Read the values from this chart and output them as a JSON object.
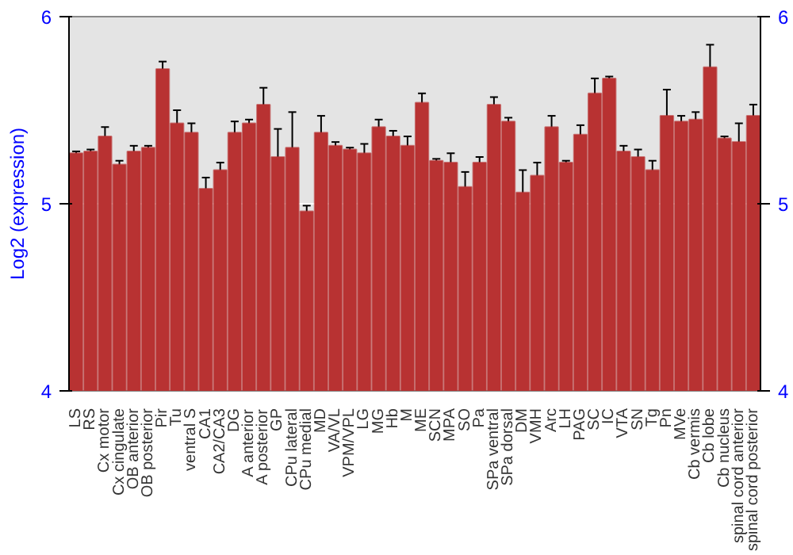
{
  "chart_data": {
    "type": "bar",
    "ylabel": "Log2 (expression)",
    "categories": [
      "LS",
      "RS",
      "Cx motor",
      "Cx cingulate",
      "OB anterior",
      "OB posterior",
      "Pir",
      "Tu",
      "ventral S",
      "CA1",
      "CA2/CA3",
      "DG",
      "A anterior",
      "A posterior",
      "GP",
      "CPu lateral",
      "CPu medial",
      "MD",
      "VA/VL",
      "VPM/VPL",
      "LG",
      "MG",
      "Hb",
      "M",
      "ME",
      "SCN",
      "MPA",
      "SO",
      "Pa",
      "SPa ventral",
      "SPa dorsal",
      "DM",
      "VMH",
      "Arc",
      "LH",
      "PAG",
      "SC",
      "IC",
      "VTA",
      "SN",
      "Tg",
      "Pn",
      "MVe",
      "Cb vermis",
      "Cb lobe",
      "Cb nucleus",
      "spinal cord anterior",
      "spinal cord posterior"
    ],
    "values": [
      5.27,
      5.28,
      5.36,
      5.21,
      5.28,
      5.3,
      5.72,
      5.43,
      5.38,
      5.08,
      5.18,
      5.38,
      5.43,
      5.53,
      5.25,
      5.3,
      4.96,
      5.38,
      5.31,
      5.29,
      5.27,
      5.41,
      5.36,
      5.31,
      5.54,
      5.23,
      5.22,
      5.09,
      5.22,
      5.53,
      5.44,
      5.06,
      5.15,
      5.41,
      5.22,
      5.37,
      5.59,
      5.67,
      5.28,
      5.25,
      5.18,
      5.47,
      5.44,
      5.45,
      5.73,
      5.35,
      5.33,
      5.47
    ],
    "errors": [
      0.01,
      0.01,
      0.05,
      0.02,
      0.03,
      0.01,
      0.04,
      0.07,
      0.05,
      0.06,
      0.04,
      0.06,
      0.02,
      0.09,
      0.15,
      0.19,
      0.03,
      0.09,
      0.02,
      0.01,
      0.05,
      0.04,
      0.03,
      0.05,
      0.05,
      0.01,
      0.05,
      0.08,
      0.03,
      0.04,
      0.02,
      0.12,
      0.07,
      0.06,
      0.01,
      0.05,
      0.08,
      0.01,
      0.03,
      0.04,
      0.05,
      0.14,
      0.03,
      0.04,
      0.12,
      0.01,
      0.1,
      0.06
    ],
    "color": "#b83232",
    "ylim": [
      4,
      6
    ],
    "yticks": [
      4,
      5,
      6
    ],
    "y2lim": [
      4,
      6
    ],
    "y2ticks": [
      4,
      5,
      6
    ],
    "grid": "y"
  }
}
